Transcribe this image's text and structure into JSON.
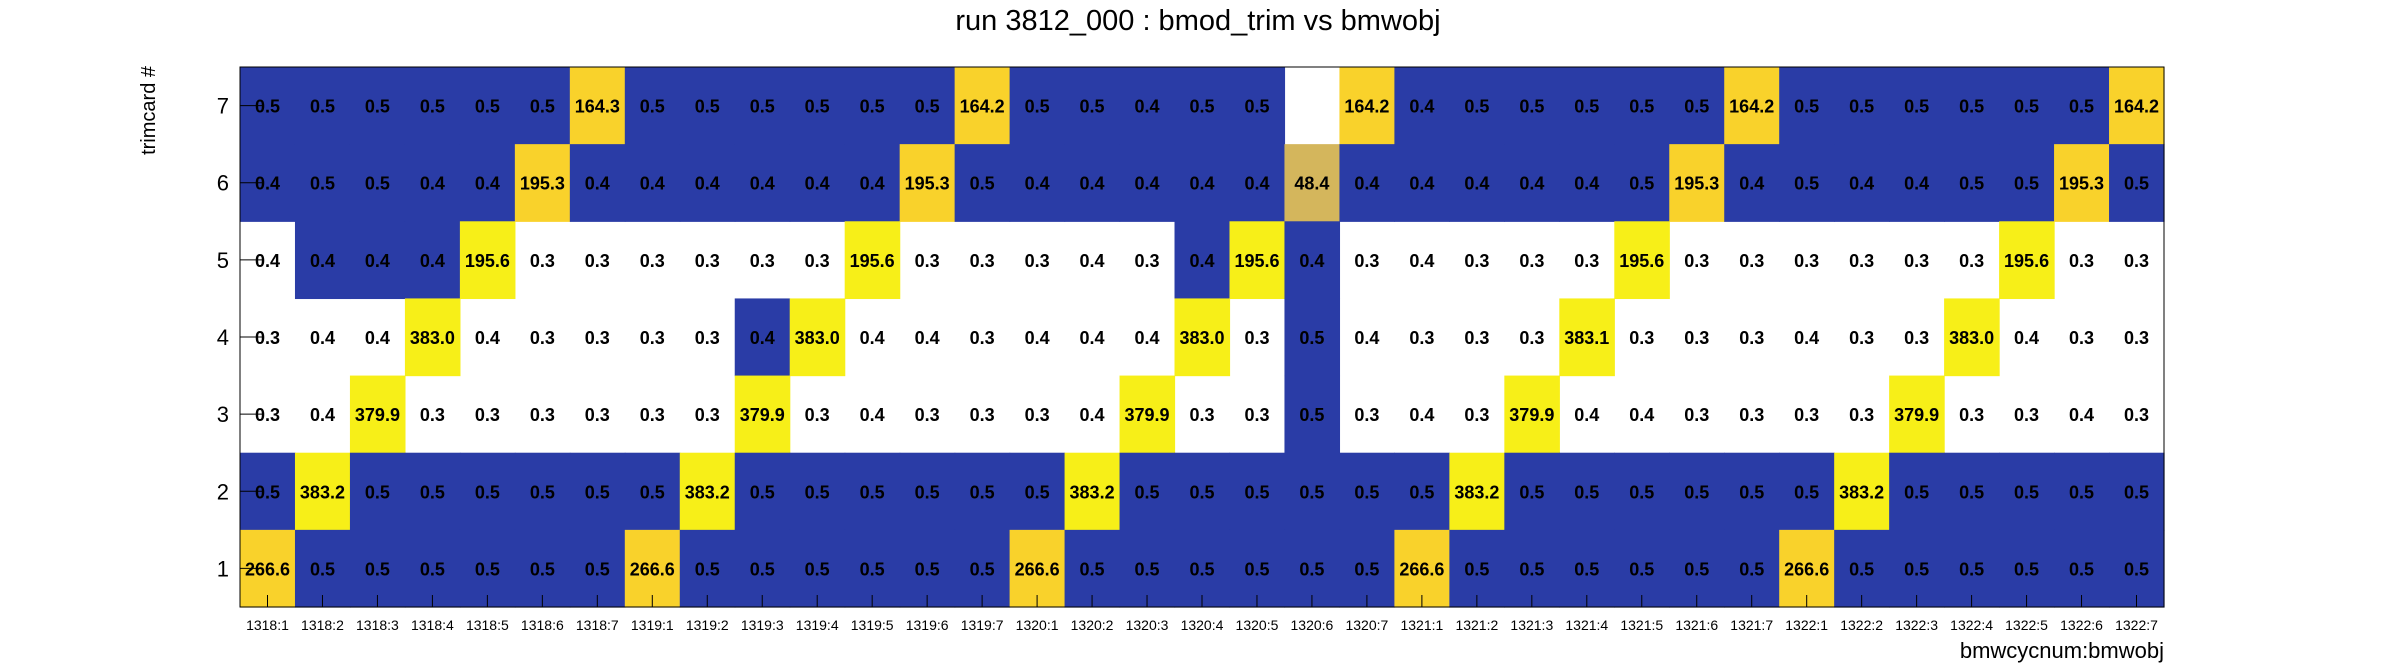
{
  "chart_data": {
    "type": "heatmap",
    "title": "run 3812_000 : bmod_trim vs bmwobj",
    "xlabel": "bmwcycnum:bmwobj",
    "ylabel": "trimcard #",
    "x_categories": [
      "1318:1",
      "1318:2",
      "1318:3",
      "1318:4",
      "1318:5",
      "1318:6",
      "1318:7",
      "1319:1",
      "1319:2",
      "1319:3",
      "1319:4",
      "1319:5",
      "1319:6",
      "1319:7",
      "1320:1",
      "1320:2",
      "1320:3",
      "1320:4",
      "1320:5",
      "1320:6",
      "1320:7",
      "1321:1",
      "1321:2",
      "1321:3",
      "1321:4",
      "1321:5",
      "1321:6",
      "1321:7",
      "1322:1",
      "1322:2",
      "1322:3",
      "1322:4",
      "1322:5",
      "1322:6",
      "1322:7"
    ],
    "y_categories": [
      "1",
      "2",
      "3",
      "4",
      "5",
      "6",
      "7"
    ],
    "rows": [
      {
        "y": "7",
        "values": [
          0.5,
          0.5,
          0.5,
          0.5,
          0.5,
          0.5,
          164.3,
          0.5,
          0.5,
          0.5,
          0.5,
          0.5,
          0.5,
          164.2,
          0.5,
          0.5,
          0.4,
          0.5,
          0.5,
          null,
          164.2,
          0.4,
          0.5,
          0.5,
          0.5,
          0.5,
          0.5,
          164.2,
          0.5,
          0.5,
          0.5,
          0.5,
          0.5,
          0.5,
          164.2
        ]
      },
      {
        "y": "6",
        "values": [
          0.4,
          0.5,
          0.5,
          0.4,
          0.4,
          195.3,
          0.4,
          0.4,
          0.4,
          0.4,
          0.4,
          0.4,
          195.3,
          0.5,
          0.4,
          0.4,
          0.4,
          0.4,
          0.4,
          48.4,
          0.4,
          0.4,
          0.4,
          0.4,
          0.4,
          0.5,
          195.3,
          0.4,
          0.5,
          0.4,
          0.4,
          0.5,
          0.5,
          195.3,
          0.5
        ]
      },
      {
        "y": "5",
        "values": [
          0.4,
          0.4,
          0.4,
          0.4,
          195.6,
          0.3,
          0.3,
          0.3,
          0.3,
          0.3,
          0.3,
          195.6,
          0.3,
          0.3,
          0.3,
          0.4,
          0.3,
          0.4,
          195.6,
          0.4,
          0.3,
          0.4,
          0.3,
          0.3,
          0.3,
          195.6,
          0.3,
          0.3,
          0.3,
          0.3,
          0.3,
          0.3,
          195.6,
          0.3,
          0.3
        ]
      },
      {
        "y": "4",
        "values": [
          0.3,
          0.4,
          0.4,
          383.0,
          0.4,
          0.3,
          0.3,
          0.3,
          0.3,
          0.4,
          383.0,
          0.4,
          0.4,
          0.3,
          0.4,
          0.4,
          0.4,
          383.0,
          0.3,
          0.5,
          0.4,
          0.3,
          0.3,
          0.3,
          383.1,
          0.3,
          0.3,
          0.3,
          0.4,
          0.3,
          0.3,
          383.0,
          0.4,
          0.3,
          0.3
        ]
      },
      {
        "y": "3",
        "values": [
          0.3,
          0.4,
          379.9,
          0.3,
          0.3,
          0.3,
          0.3,
          0.3,
          0.3,
          379.9,
          0.3,
          0.4,
          0.3,
          0.3,
          0.3,
          0.4,
          379.9,
          0.3,
          0.3,
          0.5,
          0.3,
          0.4,
          0.3,
          379.9,
          0.4,
          0.4,
          0.3,
          0.3,
          0.3,
          0.3,
          379.9,
          0.3,
          0.3,
          0.4,
          0.3
        ]
      },
      {
        "y": "2",
        "values": [
          0.5,
          383.2,
          0.5,
          0.5,
          0.5,
          0.5,
          0.5,
          0.5,
          383.2,
          0.5,
          0.5,
          0.5,
          0.5,
          0.5,
          0.5,
          383.2,
          0.5,
          0.5,
          0.5,
          0.5,
          0.5,
          0.5,
          383.2,
          0.5,
          0.5,
          0.5,
          0.5,
          0.5,
          0.5,
          383.2,
          0.5,
          0.5,
          0.5,
          0.5,
          0.5
        ]
      },
      {
        "y": "1",
        "values": [
          266.6,
          0.5,
          0.5,
          0.5,
          0.5,
          0.5,
          0.5,
          266.6,
          0.5,
          0.5,
          0.5,
          0.5,
          0.5,
          0.5,
          266.6,
          0.5,
          0.5,
          0.5,
          0.5,
          0.5,
          0.5,
          266.6,
          0.5,
          0.5,
          0.5,
          0.5,
          0.5,
          0.5,
          266.6,
          0.5,
          0.5,
          0.5,
          0.5,
          0.5,
          0.5
        ]
      }
    ],
    "cell_color_levels": [
      [
        0,
        0,
        0,
        0,
        0,
        0,
        3,
        0,
        0,
        0,
        0,
        0,
        0,
        3,
        0,
        0,
        0,
        0,
        0,
        9,
        3,
        0,
        0,
        0,
        0,
        0,
        0,
        3,
        0,
        0,
        0,
        0,
        0,
        0,
        3
      ],
      [
        0,
        0,
        0,
        0,
        0,
        3,
        0,
        0,
        0,
        0,
        0,
        0,
        3,
        0,
        0,
        0,
        0,
        0,
        0,
        5,
        0,
        0,
        0,
        0,
        0,
        0,
        3,
        0,
        0,
        0,
        0,
        0,
        0,
        3,
        0
      ],
      [
        9,
        0,
        0,
        0,
        4,
        9,
        9,
        9,
        9,
        9,
        9,
        4,
        9,
        9,
        9,
        9,
        9,
        0,
        4,
        0,
        9,
        9,
        9,
        9,
        9,
        4,
        9,
        9,
        9,
        9,
        9,
        9,
        4,
        9,
        9
      ],
      [
        9,
        9,
        9,
        4,
        9,
        9,
        9,
        9,
        9,
        0,
        4,
        9,
        9,
        9,
        9,
        9,
        9,
        4,
        9,
        0,
        9,
        9,
        9,
        9,
        4,
        9,
        9,
        9,
        9,
        9,
        9,
        4,
        9,
        9,
        9
      ],
      [
        9,
        9,
        4,
        9,
        9,
        9,
        9,
        9,
        9,
        4,
        9,
        9,
        9,
        9,
        9,
        9,
        4,
        9,
        9,
        0,
        9,
        9,
        9,
        4,
        9,
        9,
        9,
        9,
        9,
        9,
        4,
        9,
        9,
        9,
        9
      ],
      [
        0,
        4,
        0,
        0,
        0,
        0,
        0,
        0,
        4,
        0,
        0,
        0,
        0,
        0,
        0,
        4,
        0,
        0,
        0,
        0,
        0,
        0,
        4,
        0,
        0,
        0,
        0,
        0,
        0,
        4,
        0,
        0,
        0,
        0,
        0
      ],
      [
        3,
        0,
        0,
        0,
        0,
        0,
        0,
        3,
        0,
        0,
        0,
        0,
        0,
        0,
        3,
        0,
        0,
        0,
        0,
        0,
        0,
        3,
        0,
        0,
        0,
        0,
        0,
        0,
        3,
        0,
        0,
        0,
        0,
        0,
        0
      ]
    ],
    "colors": {
      "low": "#2a3ca6",
      "high_yellow": "#f7ef18",
      "high_gold": "#f9d22b",
      "mid_olive": "#d4b65c",
      "empty": "#ffffff"
    },
    "grid": false,
    "legend": "none"
  }
}
